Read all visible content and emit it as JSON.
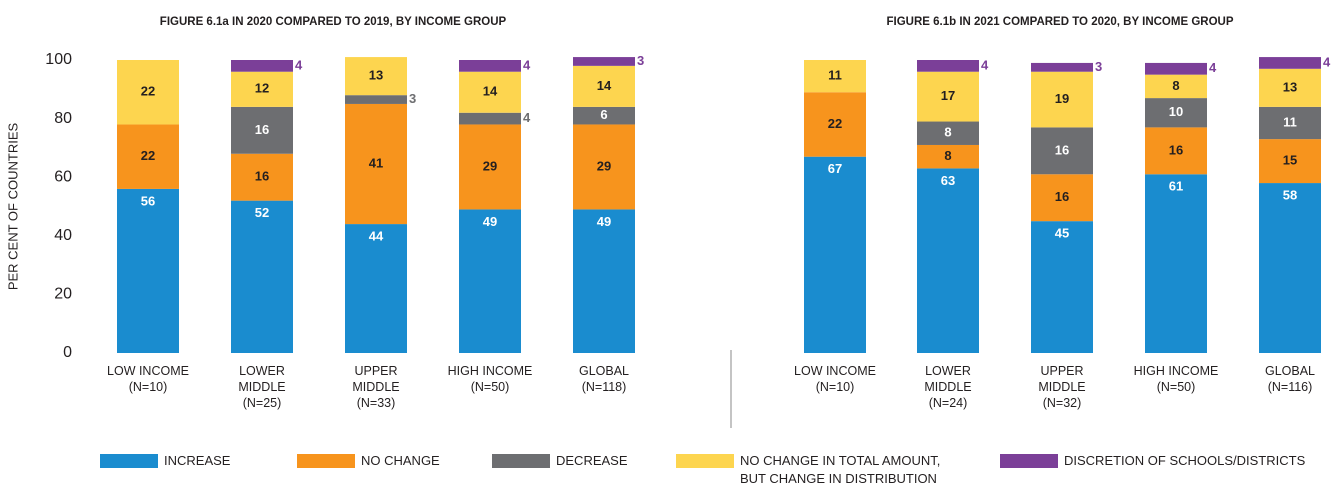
{
  "chart_data": [
    {
      "type": "stacked-bar",
      "title": "FIGURE 6.1a IN 2020 COMPARED TO 2019, BY INCOME GROUP",
      "ylabel": "PER CENT OF COUNTRIES",
      "categories": [
        "LOW INCOME\n(N=10)",
        "LOWER\nMIDDLE\n(N=25)",
        "UPPER\nMIDDLE\n(N=33)",
        "HIGH INCOME\n(N=50)",
        "GLOBAL\n(N=118)"
      ],
      "series": [
        {
          "values": [
            56,
            52,
            44,
            49,
            49
          ]
        },
        {
          "values": [
            22,
            16,
            41,
            29,
            29
          ]
        },
        {
          "values": [
            null,
            16,
            3,
            4,
            6
          ]
        },
        {
          "values": [
            22,
            12,
            13,
            14,
            14
          ]
        },
        {
          "values": [
            null,
            4,
            null,
            4,
            3
          ]
        }
      ],
      "ylim": [
        0,
        100
      ],
      "yticks": [
        0,
        20,
        40,
        60,
        80,
        100
      ]
    },
    {
      "type": "stacked-bar",
      "title": "FIGURE 6.1b IN 2021 COMPARED TO 2020, BY INCOME GROUP",
      "categories": [
        "LOW INCOME\n(N=10)",
        "LOWER\nMIDDLE\n(N=24)",
        "UPPER\nMIDDLE\n(N=32)",
        "HIGH INCOME\n(N=50)",
        "GLOBAL\n(N=116)"
      ],
      "series": [
        {
          "values": [
            67,
            63,
            45,
            61,
            58
          ]
        },
        {
          "values": [
            22,
            8,
            16,
            16,
            15
          ]
        },
        {
          "values": [
            null,
            8,
            16,
            10,
            11
          ]
        },
        {
          "values": [
            11,
            17,
            19,
            8,
            13
          ]
        },
        {
          "values": [
            null,
            4,
            3,
            4,
            4
          ]
        }
      ],
      "ylim": [
        0,
        100
      ]
    }
  ],
  "legend": {
    "items": [
      {
        "name": "INCREASE",
        "color": "#1a8ccf"
      },
      {
        "name": "NO CHANGE",
        "color": "#f7941d"
      },
      {
        "name": "DECREASE",
        "color": "#6d6e71"
      },
      {
        "name": "NO CHANGE IN TOTAL AMOUNT,\nBUT CHANGE IN DISTRIBUTION",
        "color": "#fdd54f"
      },
      {
        "name": "DISCRETION OF SCHOOLS/DISTRICTS",
        "color": "#7b3f98"
      }
    ]
  }
}
